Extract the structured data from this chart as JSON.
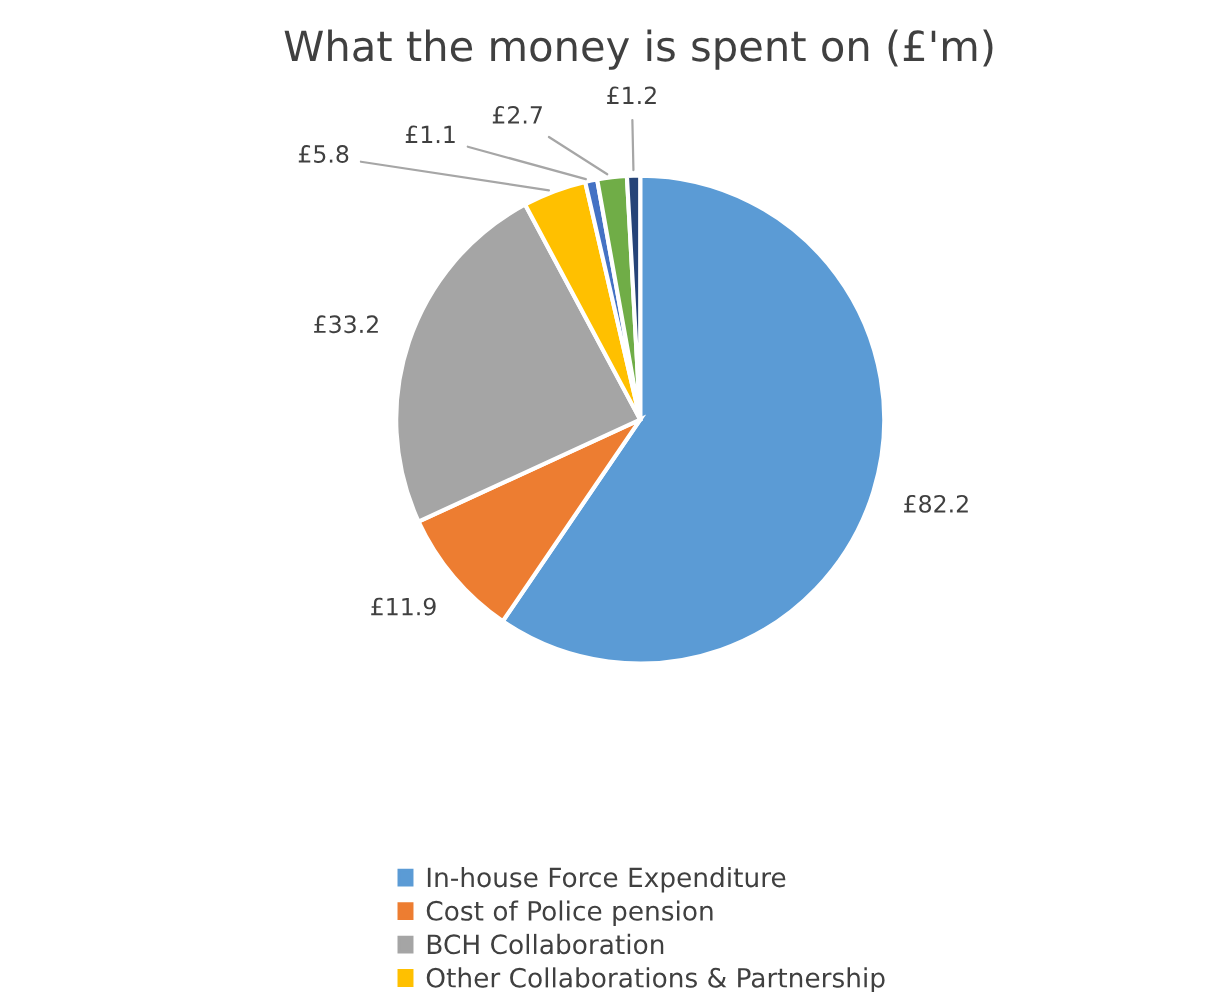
{
  "chart_data": {
    "type": "pie",
    "title": "What the money is spent on (£'m)",
    "categories": [
      "In-house Force Expenditure",
      "Cost of Police pension",
      "BCH Collaboration",
      "Other Collaborations & Partnership",
      null,
      null,
      null
    ],
    "values": [
      82.2,
      11.9,
      33.2,
      5.8,
      1.1,
      2.7,
      1.2
    ],
    "value_labels": [
      "£82.2",
      "£11.9",
      "£33.2",
      "£5.8",
      "£1.1",
      "£2.7",
      "£1.2"
    ],
    "colors": [
      "#5b9bd5",
      "#ed7d31",
      "#a5a5a5",
      "#ffc000",
      "#4472c4",
      "#70ad47",
      "#264478"
    ],
    "legend": "bottom"
  }
}
